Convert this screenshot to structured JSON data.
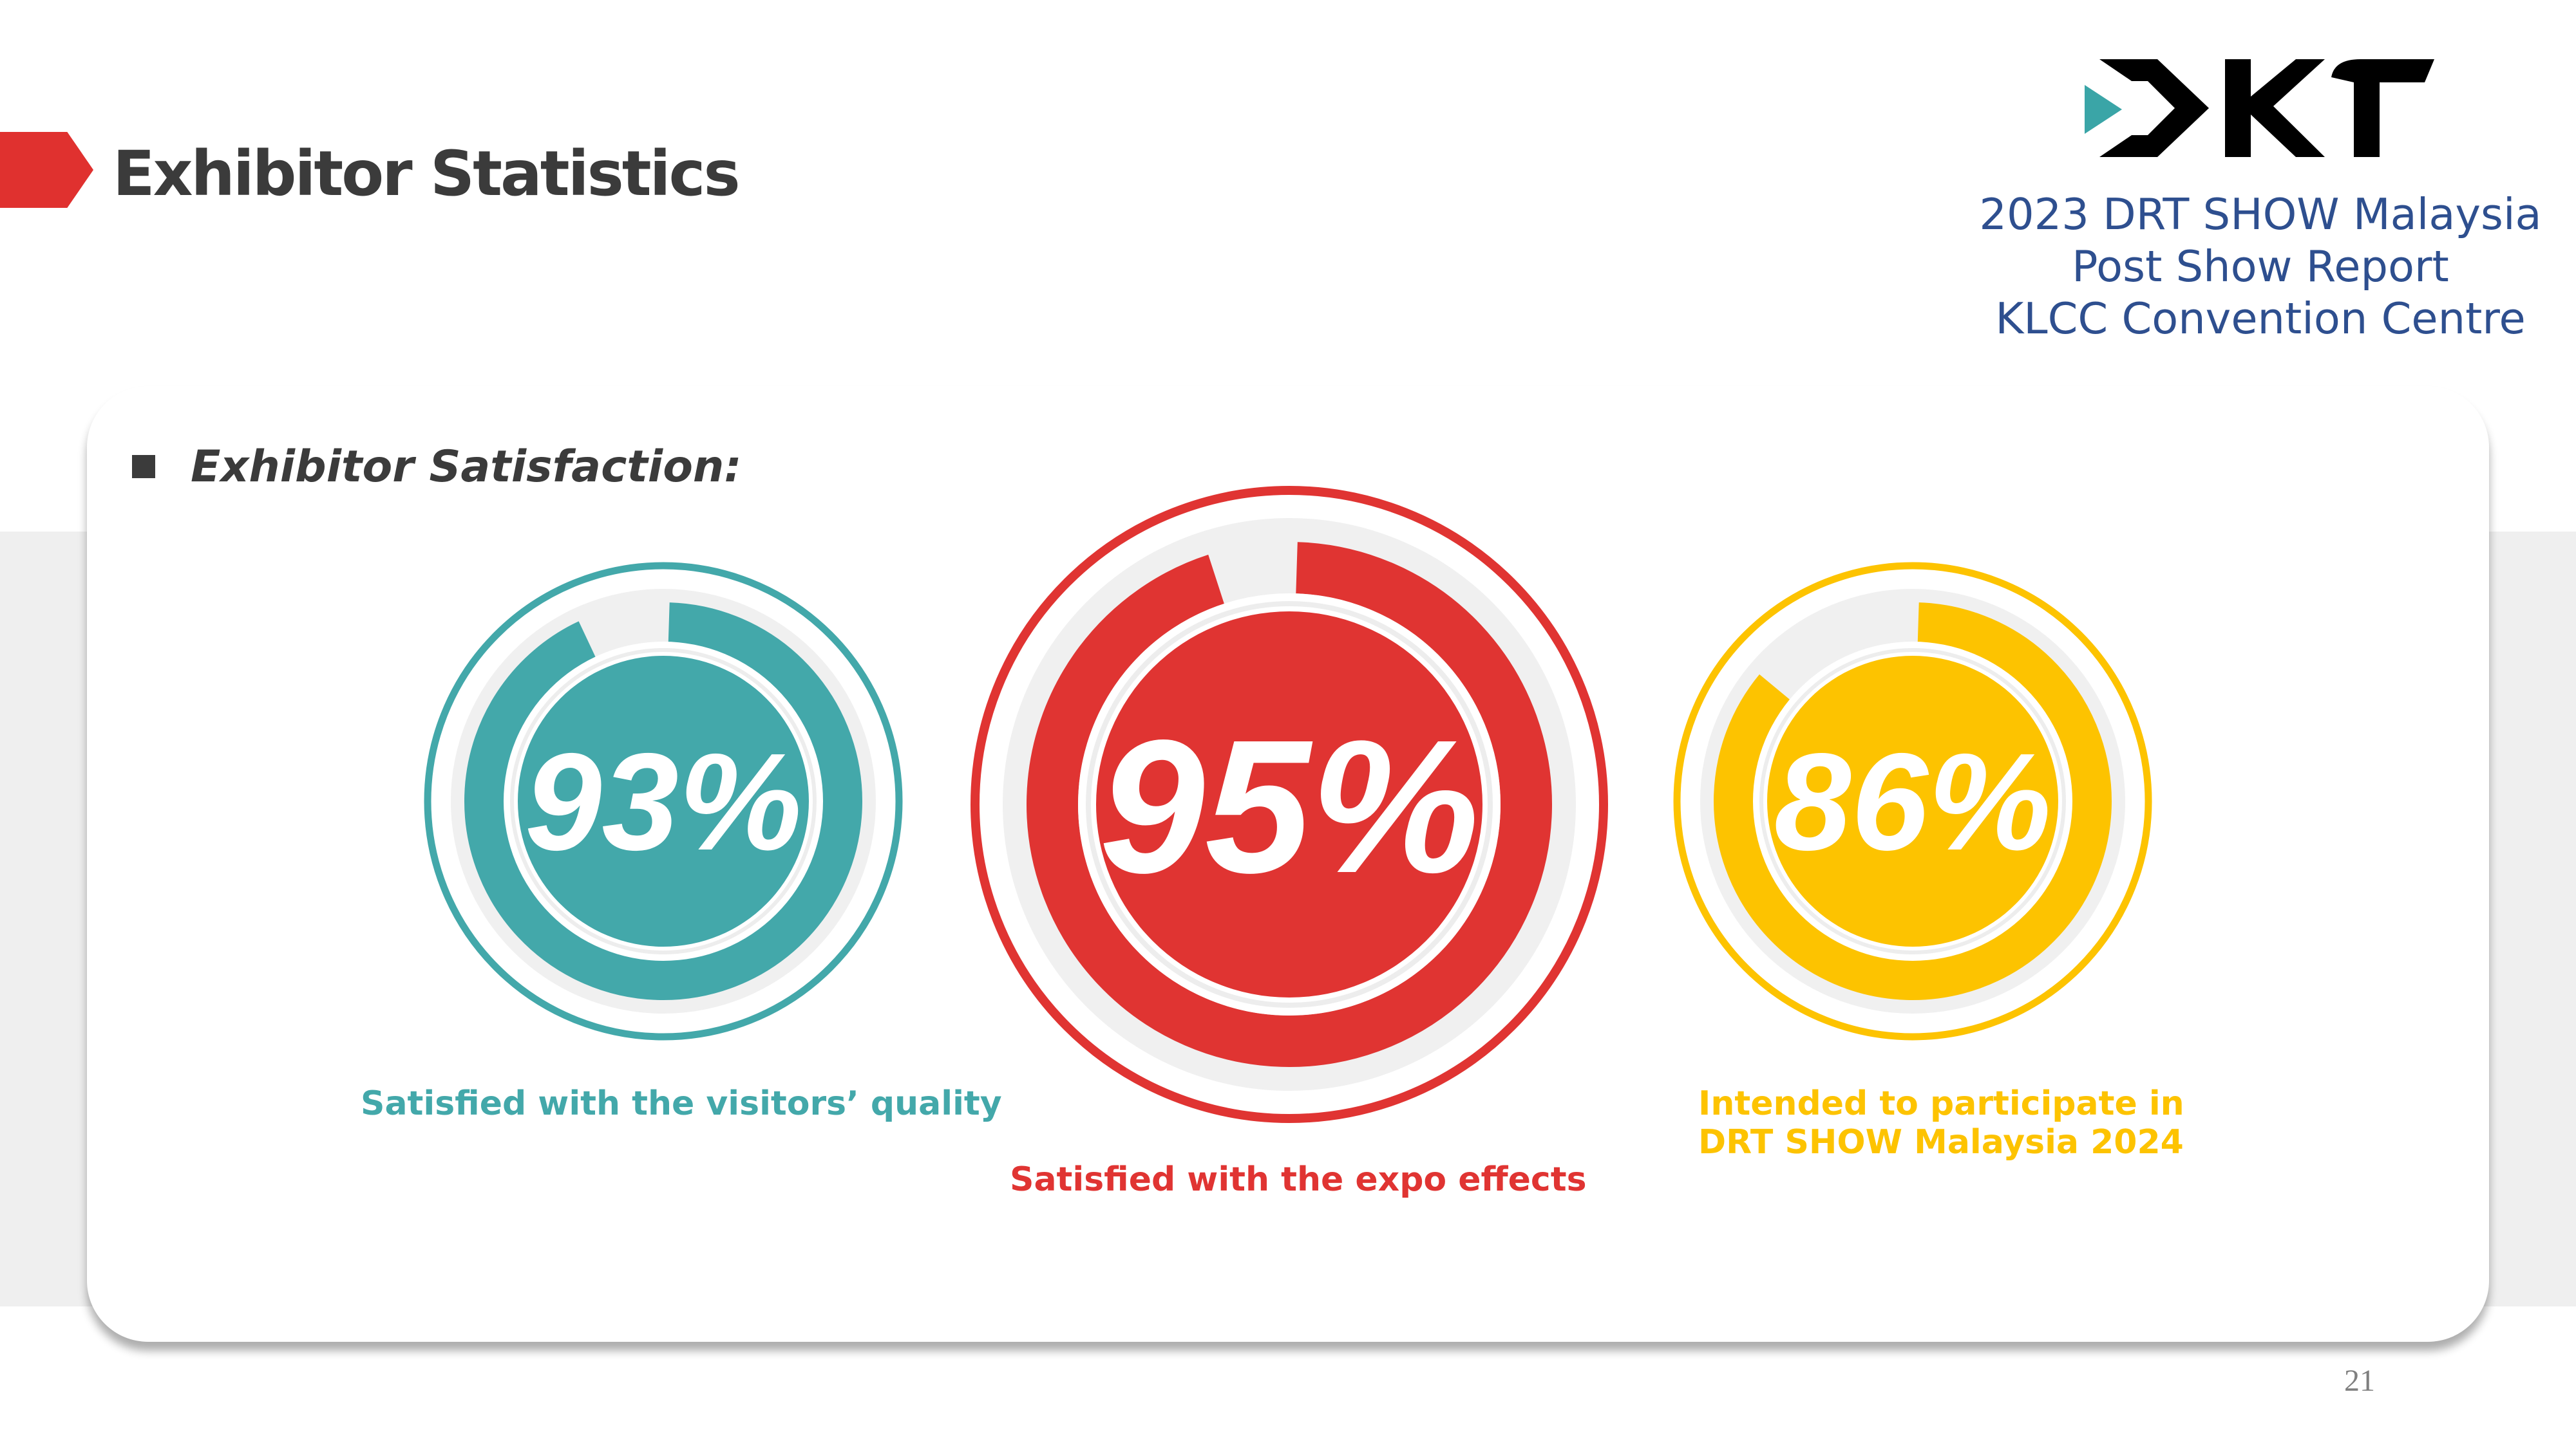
{
  "header": {
    "title": "Exhibitor Statistics",
    "logo_text": "DRT",
    "report_lines": [
      "2023 DRT SHOW Malaysia",
      "Post Show Report",
      "KLCC Convention Centre"
    ]
  },
  "section": {
    "label": "Exhibitor Satisfaction:"
  },
  "stats": [
    {
      "value": 93,
      "label": "93%",
      "caption": [
        "Satisfied with the visitors’ quality"
      ],
      "color": "#43a8aa"
    },
    {
      "value": 95,
      "label": "95%",
      "caption": [
        "Satisfied with the expo effects"
      ],
      "color": "#e03432"
    },
    {
      "value": 86,
      "label": "86%",
      "caption": [
        "Intended to participate in",
        "DRT SHOW Malaysia 2024"
      ],
      "color": "#fdc300"
    }
  ],
  "colors": {
    "accent_red": "#e0312f",
    "title_gray": "#3b3b3b",
    "report_blue": "#2e4f8f",
    "teal": "#43a8aa",
    "yellow": "#fdc300"
  },
  "footer": {
    "page_number": "21"
  }
}
